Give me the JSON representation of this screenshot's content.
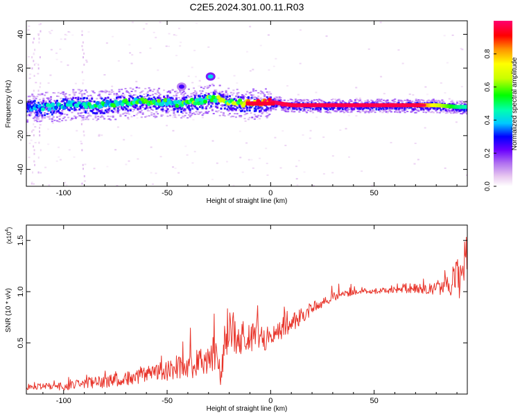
{
  "figure": {
    "title": "C2E5.2024.301.00.11.R03"
  },
  "chart_data": [
    {
      "type": "heatmap",
      "title": "C2E5.2024.301.00.11.R03",
      "xlabel": "Height of straight line (km)",
      "ylabel": "Frequency (Hz)",
      "xlim": [
        -118,
        95
      ],
      "ylim": [
        -50,
        48
      ],
      "xticks": [
        -100,
        -50,
        0,
        50
      ],
      "yticks": [
        -40,
        -20,
        0,
        20,
        40
      ],
      "grid": false,
      "colorbar": {
        "label": "Normalized spectral amplitude",
        "range": [
          0,
          1
        ],
        "ticks": [
          "0.0",
          "0.2",
          "0.4",
          "0.6",
          "0.8"
        ],
        "colormap": [
          "#ffffff",
          "#e8c8f0",
          "#b070f0",
          "#6a00ff",
          "#0000ff",
          "#00c8ff",
          "#00ffb0",
          "#00ff00",
          "#c8ff00",
          "#ffff00",
          "#ff9000",
          "#ff0000",
          "#ff0070"
        ]
      },
      "ridge": [
        {
          "x": -115,
          "f": -3,
          "amp": 0.35
        },
        {
          "x": -105,
          "f": -3,
          "amp": 0.4
        },
        {
          "x": -95,
          "f": -1,
          "amp": 0.38
        },
        {
          "x": -85,
          "f": -2,
          "amp": 0.45
        },
        {
          "x": -75,
          "f": -1,
          "amp": 0.48
        },
        {
          "x": -65,
          "f": 0,
          "amp": 0.5
        },
        {
          "x": -55,
          "f": 0,
          "amp": 0.52
        },
        {
          "x": -45,
          "f": -1,
          "amp": 0.5
        },
        {
          "x": -35,
          "f": 0,
          "amp": 0.55
        },
        {
          "x": -28,
          "f": 2,
          "amp": 0.55
        },
        {
          "x": -20,
          "f": 0,
          "amp": 0.6
        },
        {
          "x": -12,
          "f": -1,
          "amp": 0.7
        },
        {
          "x": -8,
          "f": -1,
          "amp": 0.9
        },
        {
          "x": 0,
          "f": 0,
          "amp": 1.0
        },
        {
          "x": 10,
          "f": -2,
          "amp": 0.95
        },
        {
          "x": 30,
          "f": -2,
          "amp": 0.98
        },
        {
          "x": 50,
          "f": -2,
          "amp": 0.98
        },
        {
          "x": 70,
          "f": -2,
          "amp": 0.95
        },
        {
          "x": 80,
          "f": -2,
          "amp": 0.7
        },
        {
          "x": 90,
          "f": -3,
          "amp": 0.5
        },
        {
          "x": 95,
          "f": -3,
          "amp": 0.45
        }
      ],
      "blobs": [
        {
          "x": -29,
          "f": 15,
          "amp": 0.4
        },
        {
          "x": -43,
          "f": 9,
          "amp": 0.25
        }
      ]
    },
    {
      "type": "line",
      "xlabel": "Height of straight line (km)",
      "ylabel": "SNR (10 * v/v)",
      "y_multiplier": "(x10",
      "y_multiplier_exp": "4",
      "y_multiplier_close": ")",
      "xlim": [
        -118,
        95
      ],
      "ylim": [
        0,
        1.65
      ],
      "xticks": [
        -100,
        -50,
        0,
        50
      ],
      "yticks": [
        "0.5",
        "1.0",
        "1.5"
      ],
      "ytick_values": [
        0.5,
        1.0,
        1.5
      ],
      "grid": false,
      "color": "#e8342a",
      "series": [
        {
          "x": [
            -118,
            -110,
            -100,
            -90,
            -80,
            -70,
            -60,
            -50,
            -45,
            -40,
            -35,
            -30,
            -26,
            -24,
            -22,
            -20,
            -18,
            -15,
            -10,
            -5,
            0,
            5,
            10,
            15,
            20,
            25,
            30,
            35,
            40,
            45,
            50,
            55,
            60,
            65,
            70,
            75,
            80,
            85,
            88,
            90,
            92,
            95
          ],
          "y": [
            0.05,
            0.07,
            0.06,
            0.09,
            0.1,
            0.13,
            0.17,
            0.2,
            0.21,
            0.23,
            0.27,
            0.3,
            0.32,
            0.12,
            0.45,
            0.68,
            0.55,
            0.5,
            0.52,
            0.48,
            0.55,
            0.6,
            0.66,
            0.74,
            0.82,
            0.88,
            0.93,
            0.96,
            0.98,
            0.99,
            1.0,
            1.0,
            1.01,
            1.02,
            1.02,
            1.01,
            1.02,
            1.04,
            1.06,
            1.1,
            1.05,
            1.4
          ],
          "noise": [
            0.03,
            0.03,
            0.04,
            0.05,
            0.06,
            0.07,
            0.08,
            0.1,
            0.14,
            0.14,
            0.13,
            0.14,
            0.16,
            0.12,
            0.25,
            0.3,
            0.2,
            0.18,
            0.16,
            0.14,
            0.1,
            0.1,
            0.09,
            0.08,
            0.06,
            0.05,
            0.05,
            0.04,
            0.03,
            0.03,
            0.03,
            0.03,
            0.04,
            0.05,
            0.05,
            0.05,
            0.07,
            0.1,
            0.15,
            0.18,
            0.2,
            0.25
          ]
        }
      ]
    }
  ]
}
